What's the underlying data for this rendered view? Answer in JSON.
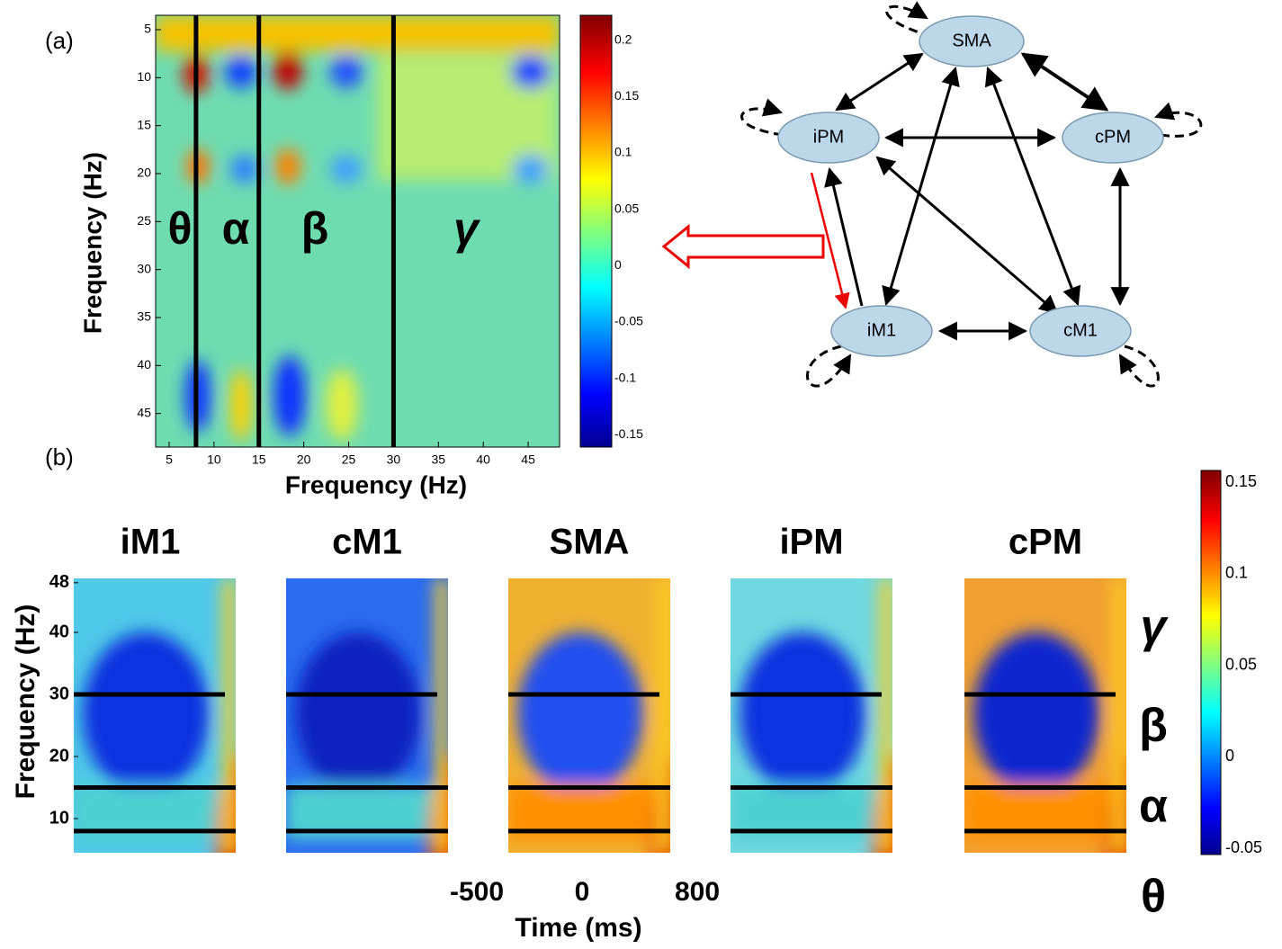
{
  "panel_a": {
    "label": "(a)",
    "matrix": {
      "xlabel": "Frequency (Hz)",
      "ylabel": "Frequency (Hz)",
      "xlim": [
        3.5,
        48.5
      ],
      "ylim": [
        3.5,
        48.5
      ],
      "xticks": [
        5,
        10,
        15,
        20,
        25,
        30,
        35,
        40,
        45
      ],
      "yticks": [
        5,
        10,
        15,
        20,
        25,
        30,
        35,
        40,
        45
      ],
      "band_edges": [
        8,
        15,
        30
      ],
      "band_labels": [
        "θ",
        "α",
        "β",
        "γ"
      ]
    },
    "colorbar": {
      "lim": [
        -0.161,
        0.222
      ],
      "ticks": [
        0.2,
        0.15,
        0.1,
        0.05,
        0,
        -0.05,
        -0.1,
        -0.15
      ]
    }
  },
  "network": {
    "nodes": [
      "SMA",
      "iPM",
      "cPM",
      "iM1",
      "cM1"
    ]
  },
  "panel_b": {
    "label": "(b)",
    "titles": [
      "iM1",
      "cM1",
      "SMA",
      "iPM",
      "cPM"
    ],
    "ylabel": "Frequency (Hz)",
    "ylim": [
      4.5,
      48.7
    ],
    "yticks": [
      10,
      20,
      30,
      40,
      48
    ],
    "band_edges": [
      8,
      15,
      30
    ],
    "band_labels": [
      "γ",
      "β",
      "α",
      "θ"
    ],
    "time_labels": [
      "-500",
      "0",
      "800"
    ],
    "xlabel": "Time (ms)",
    "colorbar": {
      "lim": [
        -0.0534,
        0.1564
      ],
      "ticks": [
        0.15,
        0.1,
        0.05,
        0,
        -0.05
      ]
    }
  }
}
